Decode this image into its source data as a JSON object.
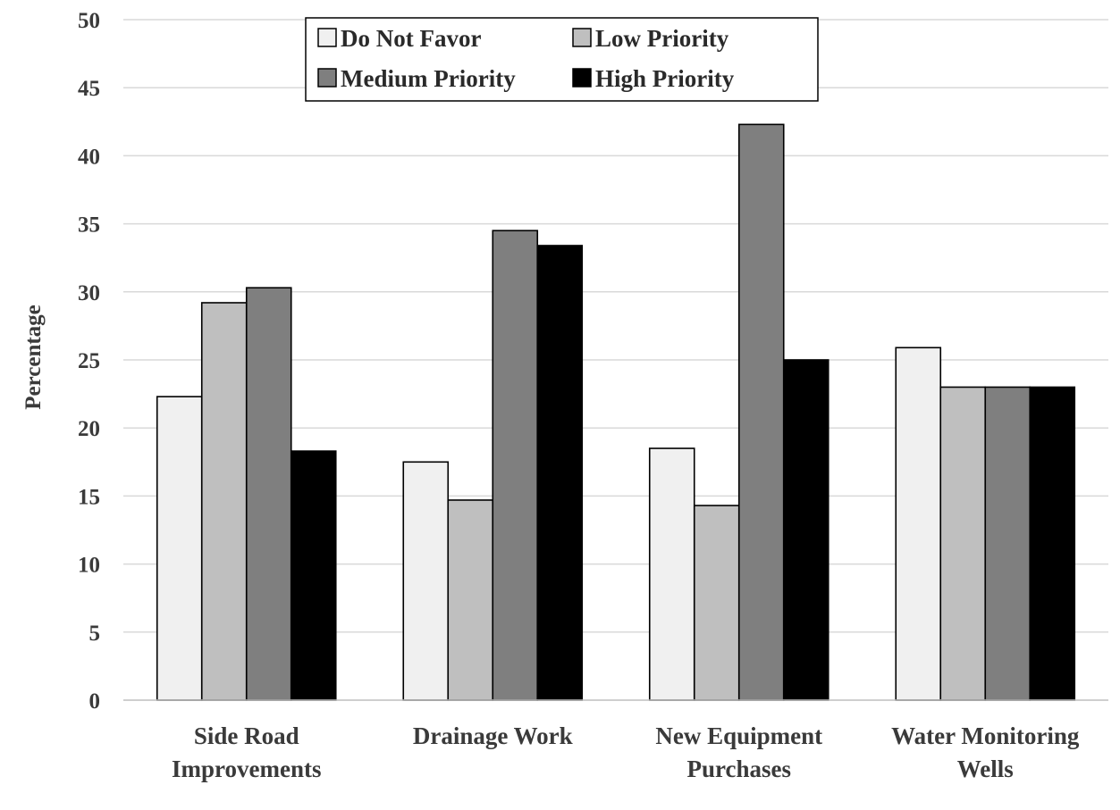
{
  "chart_data": {
    "type": "bar",
    "ylabel": "Percentage",
    "ylim": [
      0,
      50
    ],
    "yticks": [
      0,
      5,
      10,
      15,
      20,
      25,
      30,
      35,
      40,
      45,
      50
    ],
    "grid": true,
    "legend": "top-center",
    "categories": [
      [
        "Side Road",
        "Improvements"
      ],
      [
        "Drainage Work"
      ],
      [
        "New Equipment",
        "Purchases"
      ],
      [
        "Water Monitoring",
        "Wells"
      ]
    ],
    "series": [
      {
        "name": "Do Not Favor",
        "color": "#f0f0f0",
        "values": [
          22.3,
          17.5,
          18.5,
          25.9
        ]
      },
      {
        "name": "Low Priority",
        "color": "#bfbfbf",
        "values": [
          29.2,
          14.7,
          14.3,
          23.0
        ]
      },
      {
        "name": "Medium Priority",
        "color": "#7f7f7f",
        "values": [
          30.3,
          34.5,
          42.3,
          23.0
        ]
      },
      {
        "name": "High Priority",
        "color": "#000000",
        "values": [
          18.3,
          33.4,
          25.0,
          23.0
        ]
      }
    ]
  }
}
